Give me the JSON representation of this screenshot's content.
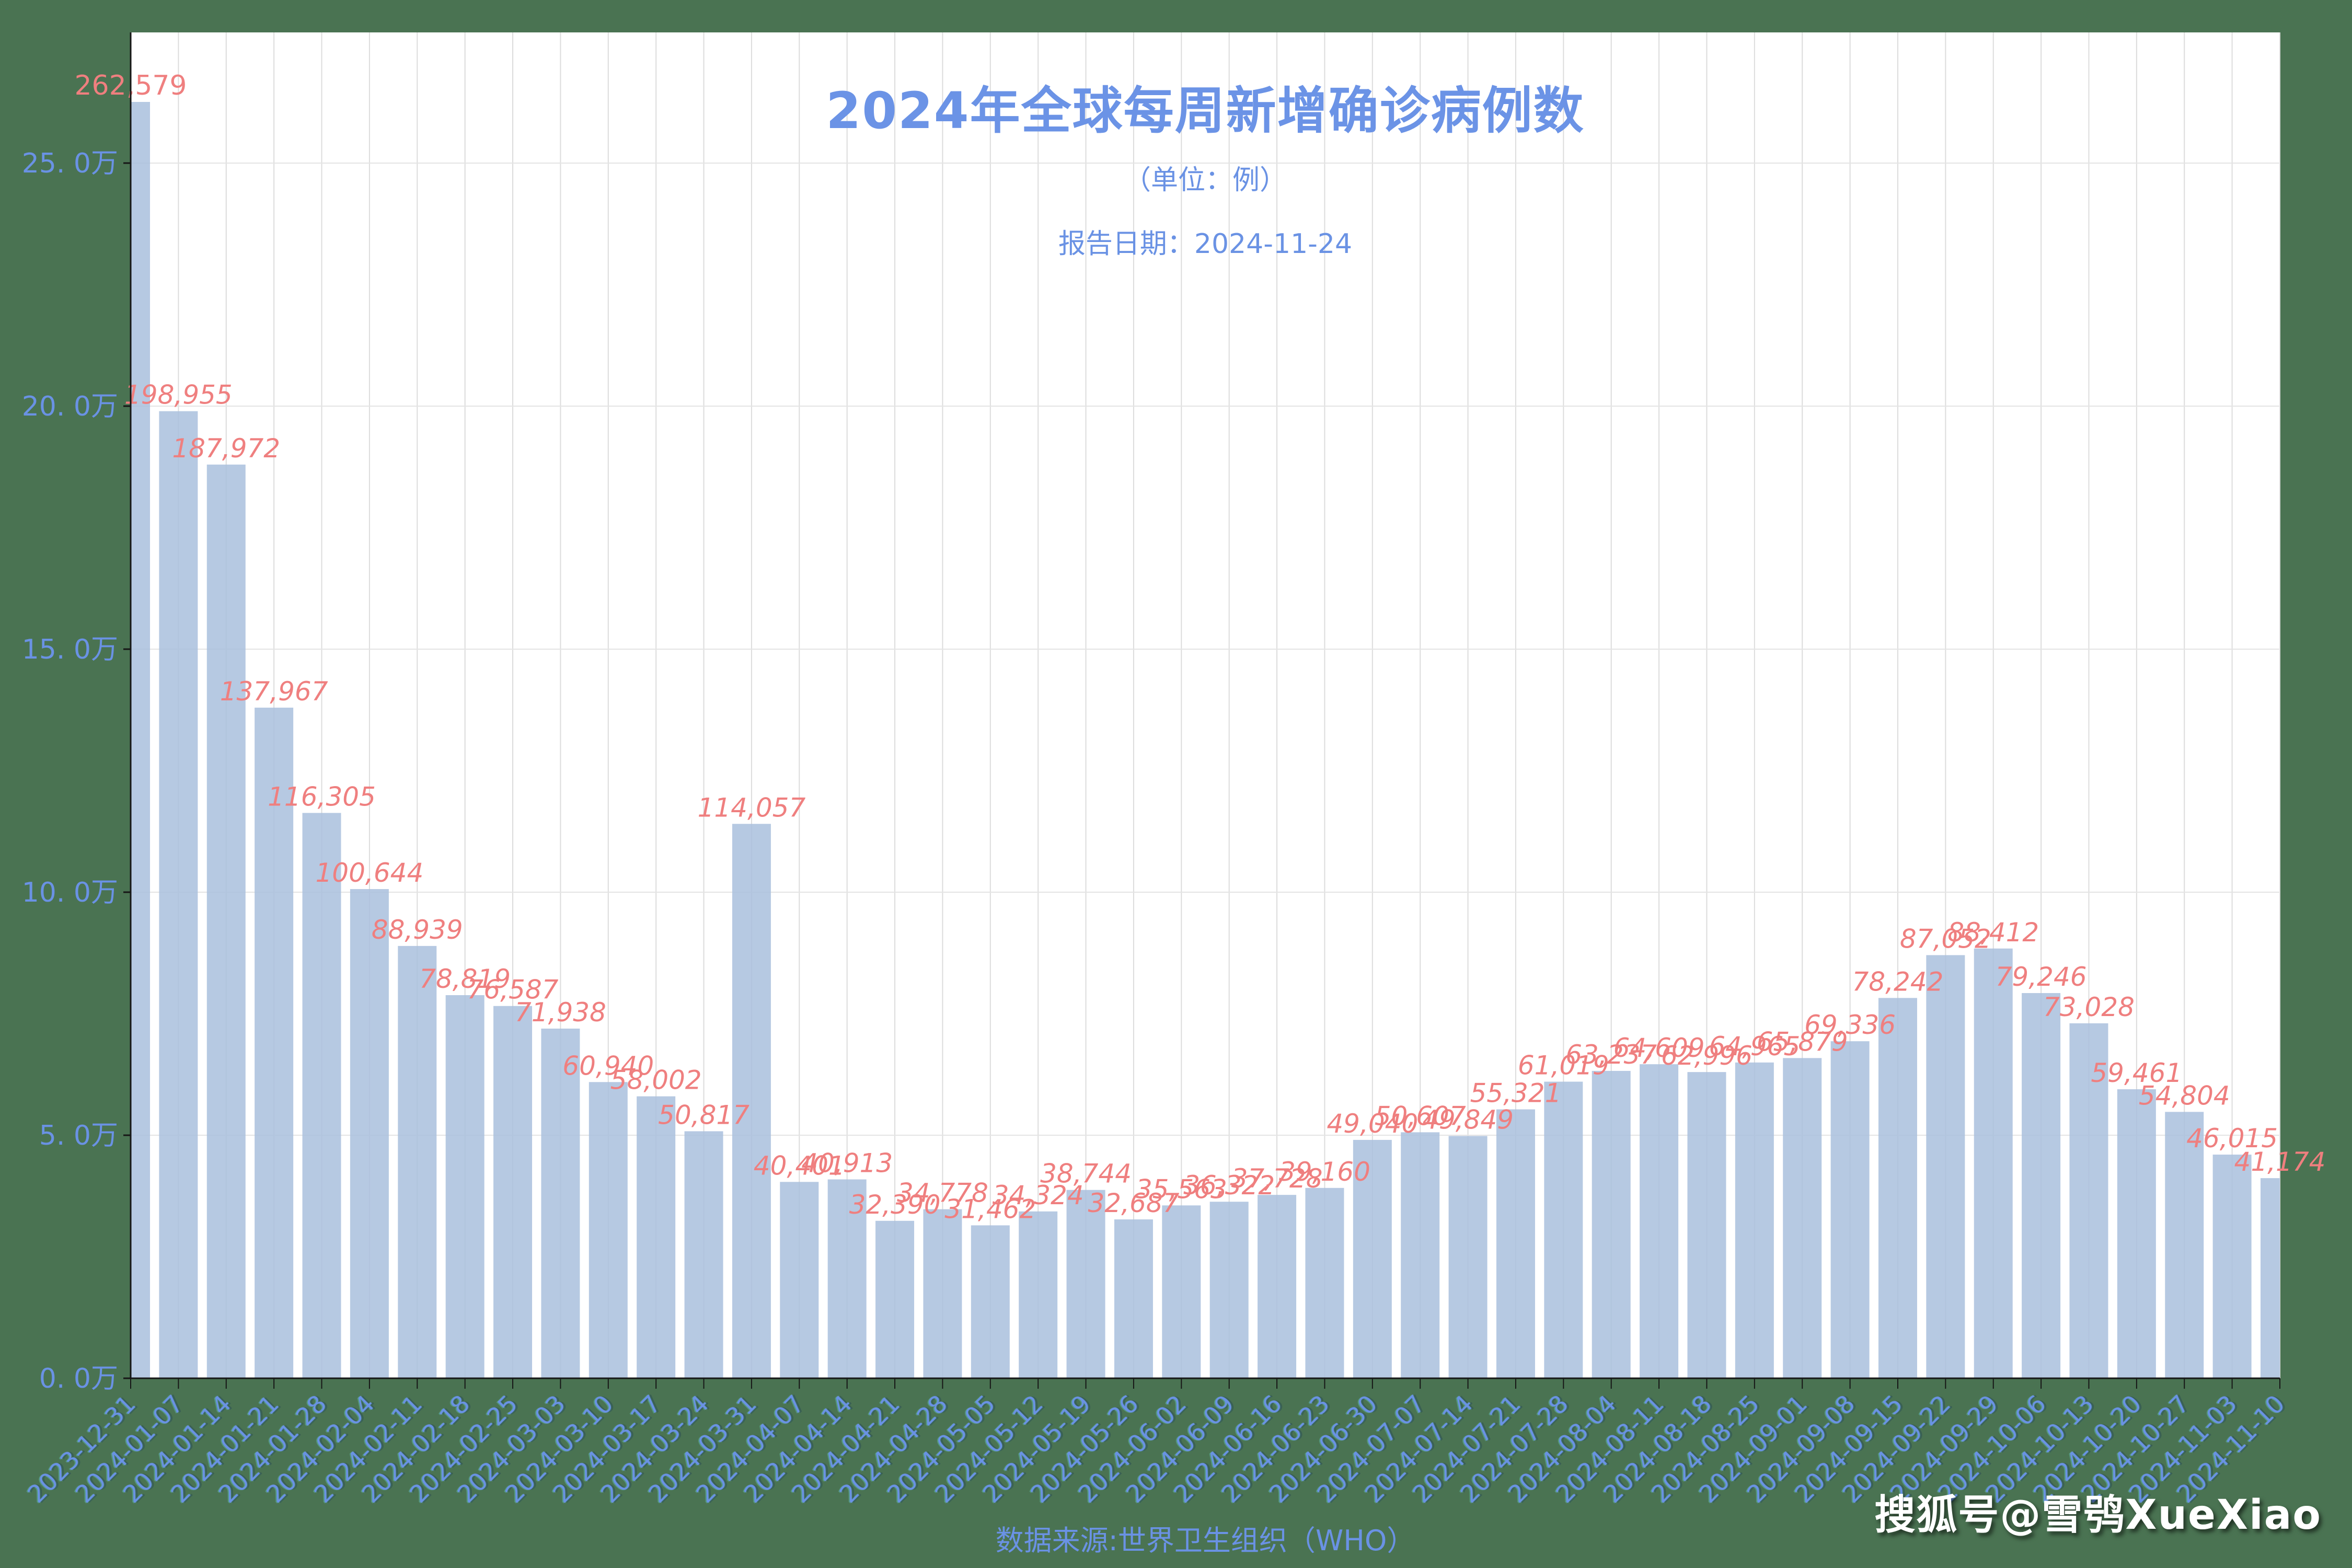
{
  "header": {
    "title": "2024年全球每周新增确诊病例数",
    "subtitle": "（单位：例）",
    "report_date": "报告日期：2024-11-24"
  },
  "footer": {
    "source": "数据来源:世界卫生组织（WHO）"
  },
  "watermark": "搜狐号@雪鸮XueXiao",
  "colors": {
    "background": "#4a7352",
    "plot_background": "#ffffff",
    "bar": "#a9c0dd",
    "value_label": "#ef7f7f",
    "axis_text": "#6a92e4",
    "title_text": "#6b93e6",
    "grid_horizontal": "#e4e4e4",
    "grid_vertical": "#dcdcdc",
    "axis_line": "#161616",
    "watermark_text": "#ffffff"
  },
  "chart_data": {
    "type": "bar",
    "title": "2024年全球每周新增确诊病例数",
    "subtitle": "（单位：例）",
    "report_date": "报告日期：2024-11-24",
    "source": "数据来源:世界卫生组织（WHO）",
    "xlabel": "",
    "ylabel": "",
    "legend_position": "none",
    "grid": true,
    "y_ticks": [
      "0. 0万",
      "5. 0万",
      "10. 0万",
      "15. 0万",
      "20. 0万",
      "25. 0万"
    ],
    "y_tick_interval": 50000,
    "ylim": [
      0,
      276900
    ],
    "x": [
      "2023-12-31",
      "2024-01-07",
      "2024-01-14",
      "2024-01-21",
      "2024-01-28",
      "2024-02-04",
      "2024-02-11",
      "2024-02-18",
      "2024-02-25",
      "2024-03-03",
      "2024-03-10",
      "2024-03-17",
      "2024-03-24",
      "2024-03-31",
      "2024-04-07",
      "2024-04-14",
      "2024-04-21",
      "2024-04-28",
      "2024-05-05",
      "2024-05-12",
      "2024-05-19",
      "2024-05-26",
      "2024-06-02",
      "2024-06-09",
      "2024-06-16",
      "2024-06-23",
      "2024-06-30",
      "2024-07-07",
      "2024-07-14",
      "2024-07-21",
      "2024-07-28",
      "2024-08-04",
      "2024-08-11",
      "2024-08-18",
      "2024-08-25",
      "2024-09-01",
      "2024-09-08",
      "2024-09-15",
      "2024-09-22",
      "2024-09-29",
      "2024-10-06",
      "2024-10-13",
      "2024-10-20",
      "2024-10-27",
      "2024-11-03",
      "2024-11-10"
    ],
    "values": [
      262579,
      198955,
      187972,
      137967,
      116305,
      100644,
      88939,
      78819,
      76587,
      71938,
      60940,
      58002,
      50817,
      114057,
      40401,
      40913,
      32390,
      34778,
      31462,
      34324,
      38744,
      32687,
      35563,
      36322,
      37728,
      39160,
      49040,
      50607,
      49849,
      55321,
      61019,
      63237,
      64609,
      62996,
      64965,
      65879,
      69336,
      78242,
      87052,
      88412,
      79246,
      73028,
      59461,
      54804,
      46015,
      41174
    ]
  }
}
